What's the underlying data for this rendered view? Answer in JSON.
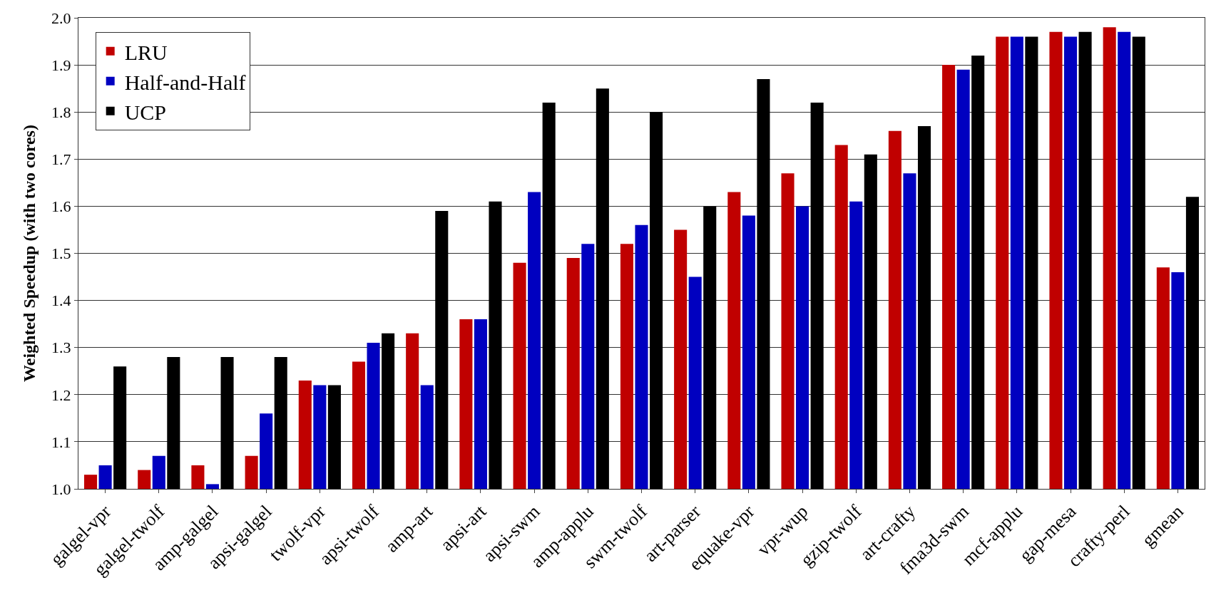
{
  "chart_data": {
    "type": "bar",
    "ylabel": "Weighted Speedup (with two cores)",
    "categories": [
      "galgel-vpr",
      "galgel-twolf",
      "amp-galgel",
      "apsi-galgel",
      "twolf-vpr",
      "apsi-twolf",
      "amp-art",
      "apsi-art",
      "apsi-swm",
      "amp-applu",
      "swm-twolf",
      "art-parser",
      "equake-vpr",
      "vpr-wup",
      "gzip-twolf",
      "art-crafty",
      "fma3d-swm",
      "mcf-applu",
      "gap-mesa",
      "crafty-perl",
      "gmean"
    ],
    "series": [
      {
        "name": "LRU",
        "color": "#c00000",
        "values": [
          1.03,
          1.04,
          1.05,
          1.07,
          1.23,
          1.27,
          1.33,
          1.36,
          1.48,
          1.49,
          1.52,
          1.55,
          1.63,
          1.67,
          1.73,
          1.76,
          1.9,
          1.96,
          1.97,
          1.98,
          1.47
        ]
      },
      {
        "name": "Half-and-Half",
        "color": "#0000c0",
        "values": [
          1.05,
          1.07,
          1.01,
          1.16,
          1.22,
          1.31,
          1.22,
          1.36,
          1.63,
          1.52,
          1.56,
          1.45,
          1.58,
          1.6,
          1.61,
          1.67,
          1.89,
          1.96,
          1.96,
          1.97,
          1.46
        ]
      },
      {
        "name": "UCP",
        "color": "#000000",
        "values": [
          1.26,
          1.28,
          1.28,
          1.28,
          1.22,
          1.33,
          1.59,
          1.61,
          1.82,
          1.85,
          1.8,
          1.6,
          1.87,
          1.82,
          1.71,
          1.77,
          1.92,
          1.96,
          1.97,
          1.96,
          1.62
        ]
      }
    ],
    "ylim": [
      1.0,
      2.0
    ],
    "yticks": [
      {
        "value": 1.0,
        "label": "1.0"
      },
      1.1,
      1.2,
      1.3,
      1.4,
      1.5,
      1.6,
      1.7,
      1.8,
      1.9,
      {
        "value": 2.0,
        "label": "2.0"
      }
    ],
    "grid": "y",
    "legend": "top left"
  }
}
